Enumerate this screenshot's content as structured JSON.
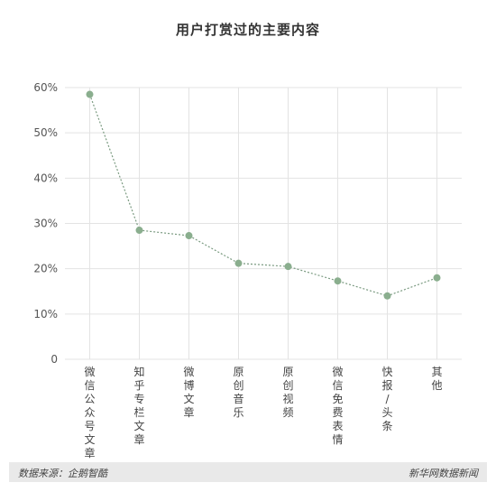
{
  "chart_data": {
    "type": "line",
    "title": "用户打赏过的主要内容",
    "categories": [
      "微信公众号文章",
      "知乎专栏文章",
      "微博文章",
      "原创音乐",
      "原创视频",
      "微信免费表情",
      "快报/头条",
      "其他"
    ],
    "values": [
      58.5,
      28.5,
      27.3,
      21.2,
      20.5,
      17.3,
      14.0,
      18.0
    ],
    "ylim": [
      0,
      60
    ],
    "yticks": [
      "0",
      "10%",
      "20%",
      "30%",
      "40%",
      "50%",
      "60%"
    ],
    "xlabel": "",
    "ylabel": "",
    "grid": true,
    "colors": {
      "line": "#7a9a80",
      "point": "#8aae8e",
      "grid": "#e3e3e3"
    }
  },
  "footer": {
    "source": "数据来源：企鹅智酷",
    "brand": "新华网数据新闻"
  }
}
